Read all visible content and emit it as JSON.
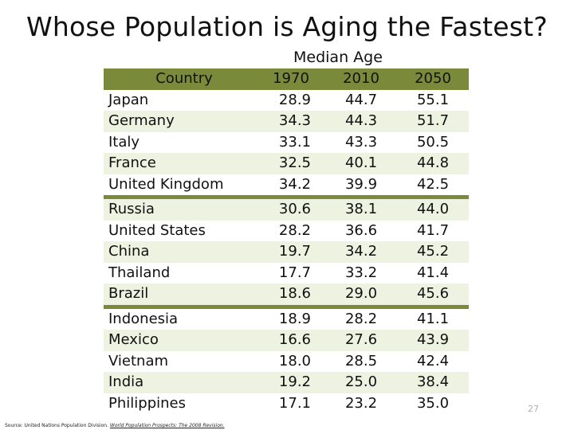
{
  "title": "Whose Population is Aging the Fastest?",
  "subheading": "Median Age",
  "table": {
    "headers": {
      "country": "Country",
      "y1970": "1970",
      "y2010": "2010",
      "y2050": "2050"
    },
    "groups": [
      [
        {
          "country": "Japan",
          "y1970": "28.9",
          "y2010": "44.7",
          "y2050": "55.1"
        },
        {
          "country": "Germany",
          "y1970": "34.3",
          "y2010": "44.3",
          "y2050": "51.7"
        },
        {
          "country": "Italy",
          "y1970": "33.1",
          "y2010": "43.3",
          "y2050": "50.5"
        },
        {
          "country": "France",
          "y1970": "32.5",
          "y2010": "40.1",
          "y2050": "44.8"
        },
        {
          "country": "United Kingdom",
          "y1970": "34.2",
          "y2010": "39.9",
          "y2050": "42.5"
        }
      ],
      [
        {
          "country": "Russia",
          "y1970": "30.6",
          "y2010": "38.1",
          "y2050": "44.0"
        },
        {
          "country": "United States",
          "y1970": "28.2",
          "y2010": "36.6",
          "y2050": "41.7"
        },
        {
          "country": "China",
          "y1970": "19.7",
          "y2010": "34.2",
          "y2050": "45.2"
        },
        {
          "country": "Thailand",
          "y1970": "17.7",
          "y2010": "33.2",
          "y2050": "41.4"
        },
        {
          "country": "Brazil",
          "y1970": "18.6",
          "y2010": "29.0",
          "y2050": "45.6"
        }
      ],
      [
        {
          "country": "Indonesia",
          "y1970": "18.9",
          "y2010": "28.2",
          "y2050": "41.1"
        },
        {
          "country": "Mexico",
          "y1970": "16.6",
          "y2010": "27.6",
          "y2050": "43.9"
        },
        {
          "country": "Vietnam",
          "y1970": "18.0",
          "y2010": "28.5",
          "y2050": "42.4"
        },
        {
          "country": "India",
          "y1970": "19.2",
          "y2010": "25.0",
          "y2050": "38.4"
        },
        {
          "country": "Philippines",
          "y1970": "17.1",
          "y2010": "23.2",
          "y2050": "35.0"
        }
      ]
    ]
  },
  "source": {
    "prefix": "Source: United Nations Population Division.",
    "publication": "World Population Prospects: The 2008 Revision."
  },
  "page_number": "27",
  "colors": {
    "header_band": "#7a8a3a",
    "row_band": "#eef2e1"
  }
}
